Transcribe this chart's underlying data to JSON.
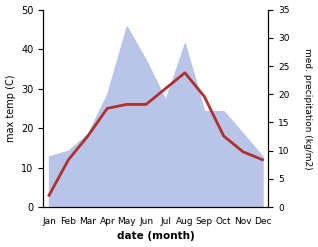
{
  "months": [
    "Jan",
    "Feb",
    "Mar",
    "Apr",
    "May",
    "Jun",
    "Jul",
    "Aug",
    "Sep",
    "Oct",
    "Nov",
    "Dec"
  ],
  "temperature": [
    3,
    12,
    18,
    25,
    26,
    26,
    30,
    34,
    28,
    18,
    14,
    12
  ],
  "precipitation": [
    9,
    10,
    13,
    20,
    32,
    26,
    19,
    29,
    17,
    17,
    13,
    9
  ],
  "temp_color": "#b03030",
  "precip_fill_color": "#b8c4e8",
  "left_ylim": [
    0,
    50
  ],
  "right_ylim": [
    0,
    35
  ],
  "left_ylabel": "max temp (C)",
  "right_ylabel": "med. precipitation (kg/m2)",
  "xlabel": "date (month)",
  "left_yticks": [
    0,
    10,
    20,
    30,
    40,
    50
  ],
  "right_yticks": [
    0,
    5,
    10,
    15,
    20,
    25,
    30,
    35
  ],
  "temp_linewidth": 2.0,
  "background_color": "#ffffff",
  "fig_width": 3.18,
  "fig_height": 2.47,
  "dpi": 100
}
